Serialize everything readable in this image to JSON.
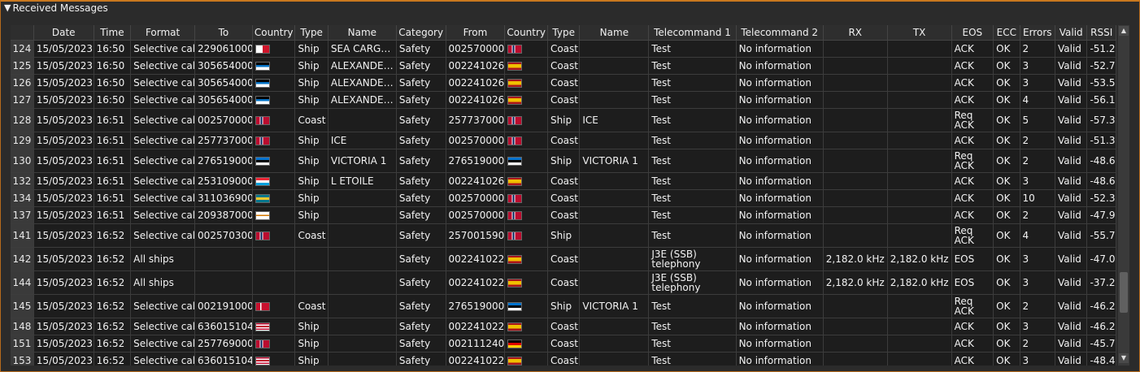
{
  "panel": {
    "title": "Received Messages"
  },
  "columns": [
    "",
    "Date",
    "Time",
    "Format",
    "To",
    "Country",
    "Type",
    "Name",
    "Category",
    "From",
    "Country",
    "Type",
    "Name",
    "Telecommand 1",
    "Telecommand 2",
    "RX",
    "TX",
    "EOS",
    "ECC",
    "Errors",
    "Valid",
    "RSSI"
  ],
  "rows": [
    {
      "n": "124",
      "date": "15/05/2023",
      "time": "16:50",
      "format": "Selective call",
      "to": "229061000",
      "to_flag": "mt",
      "to_type": "Ship",
      "to_name": "SEA CARG…",
      "cat": "Safety",
      "from": "002570000",
      "from_flag": "no",
      "from_type": "Coast",
      "from_name": "",
      "tc1": "Test",
      "tc2": "No information",
      "rx": "",
      "tx": "",
      "eos": "ACK",
      "ecc": "OK",
      "err": "2",
      "valid": "Valid",
      "rssi": "-51.2",
      "tall": false
    },
    {
      "n": "125",
      "date": "15/05/2023",
      "time": "16:50",
      "format": "Selective call",
      "to": "305654000",
      "to_flag": "ag",
      "to_type": "Ship",
      "to_name": "ALEXANDE…",
      "cat": "Safety",
      "from": "002241026",
      "from_flag": "es",
      "from_type": "Coast",
      "from_name": "",
      "tc1": "Test",
      "tc2": "No information",
      "rx": "",
      "tx": "",
      "eos": "ACK",
      "ecc": "OK",
      "err": "3",
      "valid": "Valid",
      "rssi": "-52.7",
      "tall": false
    },
    {
      "n": "126",
      "date": "15/05/2023",
      "time": "16:50",
      "format": "Selective call",
      "to": "305654000",
      "to_flag": "ag",
      "to_type": "Ship",
      "to_name": "ALEXANDE…",
      "cat": "Safety",
      "from": "002241026",
      "from_flag": "es",
      "from_type": "Coast",
      "from_name": "",
      "tc1": "Test",
      "tc2": "No information",
      "rx": "",
      "tx": "",
      "eos": "ACK",
      "ecc": "OK",
      "err": "3",
      "valid": "Valid",
      "rssi": "-53.5",
      "tall": false
    },
    {
      "n": "127",
      "date": "15/05/2023",
      "time": "16:50",
      "format": "Selective call",
      "to": "305654000",
      "to_flag": "ag",
      "to_type": "Ship",
      "to_name": "ALEXANDE…",
      "cat": "Safety",
      "from": "002241026",
      "from_flag": "es",
      "from_type": "Coast",
      "from_name": "",
      "tc1": "Test",
      "tc2": "No information",
      "rx": "",
      "tx": "",
      "eos": "ACK",
      "ecc": "OK",
      "err": "4",
      "valid": "Valid",
      "rssi": "-56.1",
      "tall": false
    },
    {
      "n": "128",
      "date": "15/05/2023",
      "time": "16:51",
      "format": "Selective call",
      "to": "002570000",
      "to_flag": "no",
      "to_type": "Coast",
      "to_name": "",
      "cat": "Safety",
      "from": "257737000",
      "from_flag": "no",
      "from_type": "Ship",
      "from_name": "ICE",
      "tc1": "Test",
      "tc2": "No information",
      "rx": "",
      "tx": "",
      "eos": "Req ACK",
      "ecc": "OK",
      "err": "5",
      "valid": "Valid",
      "rssi": "-57.3",
      "tall": true
    },
    {
      "n": "129",
      "date": "15/05/2023",
      "time": "16:51",
      "format": "Selective call",
      "to": "257737000",
      "to_flag": "no",
      "to_type": "Ship",
      "to_name": "ICE",
      "cat": "Safety",
      "from": "002570000",
      "from_flag": "no",
      "from_type": "Coast",
      "from_name": "",
      "tc1": "Test",
      "tc2": "No information",
      "rx": "",
      "tx": "",
      "eos": "ACK",
      "ecc": "OK",
      "err": "2",
      "valid": "Valid",
      "rssi": "-51.3",
      "tall": false
    },
    {
      "n": "130",
      "date": "15/05/2023",
      "time": "16:51",
      "format": "Selective call",
      "to": "276519000",
      "to_flag": "ee",
      "to_type": "Ship",
      "to_name": "VICTORIA 1",
      "cat": "Safety",
      "from": "276519000",
      "from_flag": "ee",
      "from_type": "Ship",
      "from_name": "VICTORIA 1",
      "tc1": "Test",
      "tc2": "No information",
      "rx": "",
      "tx": "",
      "eos": "Req ACK",
      "ecc": "OK",
      "err": "2",
      "valid": "Valid",
      "rssi": "-48.6",
      "tall": true
    },
    {
      "n": "132",
      "date": "15/05/2023",
      "time": "16:51",
      "format": "Selective call",
      "to": "253109000",
      "to_flag": "lu",
      "to_type": "Ship",
      "to_name": "L ETOILE",
      "cat": "Safety",
      "from": "002241026",
      "from_flag": "es",
      "from_type": "Coast",
      "from_name": "",
      "tc1": "Test",
      "tc2": "No information",
      "rx": "",
      "tx": "",
      "eos": "ACK",
      "ecc": "OK",
      "err": "3",
      "valid": "Valid",
      "rssi": "-48.6",
      "tall": false
    },
    {
      "n": "134",
      "date": "15/05/2023",
      "time": "16:51",
      "format": "Selective call",
      "to": "311036900",
      "to_flag": "bs",
      "to_type": "Ship",
      "to_name": "",
      "cat": "Safety",
      "from": "002570000",
      "from_flag": "no",
      "from_type": "Coast",
      "from_name": "",
      "tc1": "Test",
      "tc2": "No information",
      "rx": "",
      "tx": "",
      "eos": "ACK",
      "ecc": "OK",
      "err": "10",
      "valid": "Valid",
      "rssi": "-52.3",
      "tall": false
    },
    {
      "n": "137",
      "date": "15/05/2023",
      "time": "16:51",
      "format": "Selective call",
      "to": "209387000",
      "to_flag": "cy",
      "to_type": "Ship",
      "to_name": "",
      "cat": "Safety",
      "from": "002570000",
      "from_flag": "no",
      "from_type": "Coast",
      "from_name": "",
      "tc1": "Test",
      "tc2": "No information",
      "rx": "",
      "tx": "",
      "eos": "ACK",
      "ecc": "OK",
      "err": "2",
      "valid": "Valid",
      "rssi": "-47.9",
      "tall": false
    },
    {
      "n": "141",
      "date": "15/05/2023",
      "time": "16:52",
      "format": "Selective call",
      "to": "002570300",
      "to_flag": "no",
      "to_type": "Coast",
      "to_name": "",
      "cat": "Safety",
      "from": "257001590",
      "from_flag": "no",
      "from_type": "Ship",
      "from_name": "",
      "tc1": "Test",
      "tc2": "No information",
      "rx": "",
      "tx": "",
      "eos": "Req ACK",
      "ecc": "OK",
      "err": "4",
      "valid": "Valid",
      "rssi": "-55.7",
      "tall": true
    },
    {
      "n": "142",
      "date": "15/05/2023",
      "time": "16:52",
      "format": "All ships",
      "to": "",
      "to_flag": "",
      "to_type": "",
      "to_name": "",
      "cat": "Safety",
      "from": "002241022",
      "from_flag": "es",
      "from_type": "Coast",
      "from_name": "",
      "tc1": "J3E (SSB) telephony",
      "tc2": "No information",
      "rx": "2,182.0 kHz",
      "tx": "2,182.0 kHz",
      "eos": "EOS",
      "ecc": "OK",
      "err": "3",
      "valid": "Valid",
      "rssi": "-47.0",
      "tall": true
    },
    {
      "n": "144",
      "date": "15/05/2023",
      "time": "16:52",
      "format": "All ships",
      "to": "",
      "to_flag": "",
      "to_type": "",
      "to_name": "",
      "cat": "Safety",
      "from": "002241022",
      "from_flag": "es",
      "from_type": "Coast",
      "from_name": "",
      "tc1": "J3E (SSB) telephony",
      "tc2": "No information",
      "rx": "2,182.0 kHz",
      "tx": "2,182.0 kHz",
      "eos": "EOS",
      "ecc": "OK",
      "err": "3",
      "valid": "Valid",
      "rssi": "-37.2",
      "tall": true
    },
    {
      "n": "145",
      "date": "15/05/2023",
      "time": "16:52",
      "format": "Selective call",
      "to": "002191000",
      "to_flag": "dk",
      "to_type": "Coast",
      "to_name": "",
      "cat": "Safety",
      "from": "276519000",
      "from_flag": "ee",
      "from_type": "Ship",
      "from_name": "VICTORIA 1",
      "tc1": "Test",
      "tc2": "No information",
      "rx": "",
      "tx": "",
      "eos": "Req ACK",
      "ecc": "OK",
      "err": "2",
      "valid": "Valid",
      "rssi": "-46.2",
      "tall": true
    },
    {
      "n": "148",
      "date": "15/05/2023",
      "time": "16:52",
      "format": "Selective call",
      "to": "636015104",
      "to_flag": "lr",
      "to_type": "Ship",
      "to_name": "",
      "cat": "Safety",
      "from": "002241022",
      "from_flag": "es",
      "from_type": "Coast",
      "from_name": "",
      "tc1": "Test",
      "tc2": "No information",
      "rx": "",
      "tx": "",
      "eos": "ACK",
      "ecc": "OK",
      "err": "3",
      "valid": "Valid",
      "rssi": "-46.2",
      "tall": false
    },
    {
      "n": "151",
      "date": "15/05/2023",
      "time": "16:52",
      "format": "Selective call",
      "to": "257769000",
      "to_flag": "no",
      "to_type": "Ship",
      "to_name": "",
      "cat": "Safety",
      "from": "002111240",
      "from_flag": "de",
      "from_type": "Coast",
      "from_name": "",
      "tc1": "Test",
      "tc2": "No information",
      "rx": "",
      "tx": "",
      "eos": "ACK",
      "ecc": "OK",
      "err": "2",
      "valid": "Valid",
      "rssi": "-45.7",
      "tall": false
    },
    {
      "n": "153",
      "date": "15/05/2023",
      "time": "16:52",
      "format": "Selective call",
      "to": "636015104",
      "to_flag": "lr",
      "to_type": "Ship",
      "to_name": "",
      "cat": "Safety",
      "from": "002241022",
      "from_flag": "es",
      "from_type": "Coast",
      "from_name": "",
      "tc1": "Test",
      "tc2": "No information",
      "rx": "",
      "tx": "",
      "eos": "ACK",
      "ecc": "OK",
      "err": "3",
      "valid": "Valid",
      "rssi": "-48.4",
      "tall": false
    }
  ],
  "flag_styles": {
    "mt": "linear-gradient(90deg,#ffffff 50%,#cf142b 50%)",
    "no": "linear-gradient(90deg,#ba0c2f 28%,#ffffff 28%,#ffffff 34%,#00205b 34%,#00205b 46%,#ffffff 46%,#ffffff 52%,#ba0c2f 52%)",
    "ag": "linear-gradient(180deg,#000000 35%,#0072c6 35%,#0072c6 60%,#ffffff 60%),#ce1126",
    "es": "linear-gradient(180deg,#aa151b 25%,#f1bf00 25%,#f1bf00 75%,#aa151b 75%)",
    "ee": "linear-gradient(180deg,#0072ce 33%,#000000 33%,#000000 66%,#ffffff 66%)",
    "lu": "linear-gradient(180deg,#ed2939 33%,#ffffff 33%,#ffffff 66%,#00a1de 66%)",
    "bs": "linear-gradient(180deg,#00778b 33%,#ffc72c 33%,#ffc72c 66%,#00778b 66%)",
    "cy": "linear-gradient(180deg,#ffffff 40%,#d57800 40%,#d57800 55%,#ffffff 55%)",
    "dk": "linear-gradient(90deg,#c8102e 30%,#ffffff 30%,#ffffff 42%,#c8102e 42%)",
    "lr": "repeating-linear-gradient(180deg,#bf0a30 0 18%,#ffffff 18% 36%)",
    "de": "linear-gradient(180deg,#000000 33%,#dd0000 33%,#dd0000 66%,#ffce00 66%)"
  },
  "scrollbar": {
    "up_icon": "▲",
    "down_icon": "▼"
  }
}
